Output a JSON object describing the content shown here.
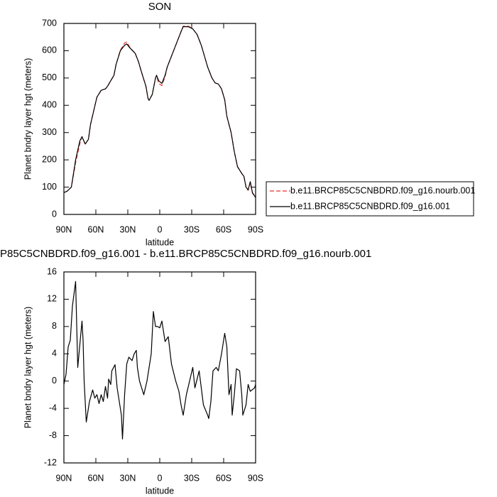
{
  "chart_data": [
    {
      "type": "line",
      "title": "SON",
      "xlabel": "latitude",
      "ylabel": "Planet bndry layer hgt (meters)",
      "xlim": [
        90,
        -90
      ],
      "xticks": [
        {
          "value": 90,
          "label": "90N"
        },
        {
          "value": 60,
          "label": "60N"
        },
        {
          "value": 30,
          "label": "30N"
        },
        0,
        {
          "value": -30,
          "label": "30S"
        },
        {
          "value": -60,
          "label": "60S"
        },
        {
          "value": -90,
          "label": "90S"
        }
      ],
      "ylim": [
        0,
        700
      ],
      "yticks": [
        0,
        100,
        200,
        300,
        400,
        500,
        600,
        700
      ],
      "legend": "right",
      "x": [
        90,
        87,
        83,
        79,
        75,
        73,
        70,
        67,
        65,
        62,
        59,
        55,
        51,
        49,
        46,
        43,
        41,
        37,
        33,
        31,
        28,
        23,
        20,
        17,
        13,
        11,
        10,
        7,
        4,
        3,
        1,
        -2,
        -5,
        -7,
        -10,
        -13,
        -17,
        -20,
        -22,
        -27,
        -31,
        -35,
        -39,
        -42,
        -45,
        -49,
        -52,
        -55,
        -58,
        -61,
        -63,
        -67,
        -70,
        -73,
        -77,
        -79,
        -81,
        -83,
        -85,
        -87,
        -90
      ],
      "series": [
        {
          "name": "b.e11.BRCP85C5CNBDRD.f09_g16.nourb.001",
          "color": "#e8322e",
          "line_style": "dashed",
          "values": [
            80,
            85,
            100,
            190,
            260,
            285,
            258,
            275,
            330,
            380,
            430,
            455,
            460,
            470,
            490,
            510,
            550,
            602,
            628,
            632,
            612,
            590,
            560,
            520,
            470,
            425,
            418,
            440,
            500,
            508,
            480,
            472,
            505,
            540,
            570,
            600,
            640,
            670,
            690,
            690,
            680,
            660,
            620,
            580,
            540,
            500,
            482,
            478,
            460,
            420,
            360,
            300,
            230,
            175,
            150,
            140,
            100,
            88,
            118,
            78,
            62
          ]
        },
        {
          "name": "b.e11.BRCP85C5CNBDRD.f09_g16.001",
          "color": "#000000",
          "line_style": "solid",
          "values": [
            80,
            85,
            100,
            200,
            270,
            285,
            258,
            275,
            330,
            380,
            430,
            455,
            460,
            470,
            490,
            510,
            550,
            600,
            620,
            625,
            610,
            590,
            560,
            520,
            470,
            425,
            418,
            440,
            500,
            510,
            490,
            480,
            510,
            540,
            570,
            600,
            640,
            670,
            688,
            688,
            680,
            660,
            620,
            580,
            540,
            500,
            482,
            478,
            460,
            420,
            360,
            300,
            230,
            175,
            150,
            140,
            100,
            90,
            120,
            80,
            62
          ]
        }
      ]
    },
    {
      "type": "line",
      "title": "P85C5CNBDRD.f09_g16.001 - b.e11.BRCP85C5CNBDRD.f09_g16.nourb.001",
      "xlabel": "latitude",
      "ylabel": "Planet bndry layer hgt (meters)",
      "xlim": [
        90,
        -90
      ],
      "xticks": [
        {
          "value": 90,
          "label": "90N"
        },
        {
          "value": 60,
          "label": "60N"
        },
        {
          "value": 30,
          "label": "30N"
        },
        0,
        {
          "value": -30,
          "label": "30S"
        },
        {
          "value": -60,
          "label": "60S"
        },
        {
          "value": -90,
          "label": "90S"
        }
      ],
      "ylim": [
        -12,
        16
      ],
      "yticks": [
        -12,
        -8,
        -4,
        0,
        4,
        8,
        12,
        16
      ],
      "x": [
        90,
        88,
        86,
        84,
        82,
        79,
        77,
        73,
        72,
        71,
        69,
        66,
        63,
        61,
        59,
        57,
        55,
        53,
        51,
        49,
        48,
        46,
        45,
        42,
        40,
        38,
        36,
        35,
        33,
        31,
        29,
        26,
        24,
        22,
        21,
        19,
        17,
        15,
        12,
        10,
        8,
        6,
        4,
        2,
        0,
        -2,
        -5,
        -8,
        -11,
        -15,
        -18,
        -20,
        -22,
        -25,
        -28,
        -31,
        -33,
        -37,
        -41,
        -45,
        -46,
        -48,
        -50,
        -53,
        -55,
        -58,
        -61,
        -63,
        -65,
        -67,
        -68,
        -70,
        -72,
        -75,
        -77,
        -78,
        -81,
        -83,
        -85,
        -89,
        -90
      ],
      "series": [
        {
          "color": "#000000",
          "line_style": "solid",
          "values": [
            -0.5,
            1,
            5,
            6,
            11,
            14.6,
            2,
            8.8,
            6,
            0,
            -6,
            -3,
            -1.3,
            -2.5,
            -2,
            -3.3,
            -2,
            -3,
            -0.8,
            -2.5,
            0.3,
            -0.5,
            1.5,
            2.4,
            -1,
            -3,
            -5,
            -8.5,
            -2,
            2.5,
            3.5,
            3,
            4,
            4.5,
            2,
            0,
            -1,
            -2,
            0,
            2,
            4,
            10.2,
            8,
            8,
            7.8,
            8.8,
            5.8,
            6.5,
            2.5,
            0,
            -1.5,
            -3.5,
            -5,
            -2,
            0,
            2,
            -1,
            1.5,
            -3.5,
            -5,
            -5.5,
            -3,
            1.5,
            2,
            1.5,
            4,
            7,
            5,
            -2,
            -0.5,
            -5,
            -2,
            1.8,
            1.5,
            -2,
            -5,
            -3.5,
            -0.5,
            -1.5,
            -1,
            -0.5
          ]
        }
      ]
    }
  ]
}
